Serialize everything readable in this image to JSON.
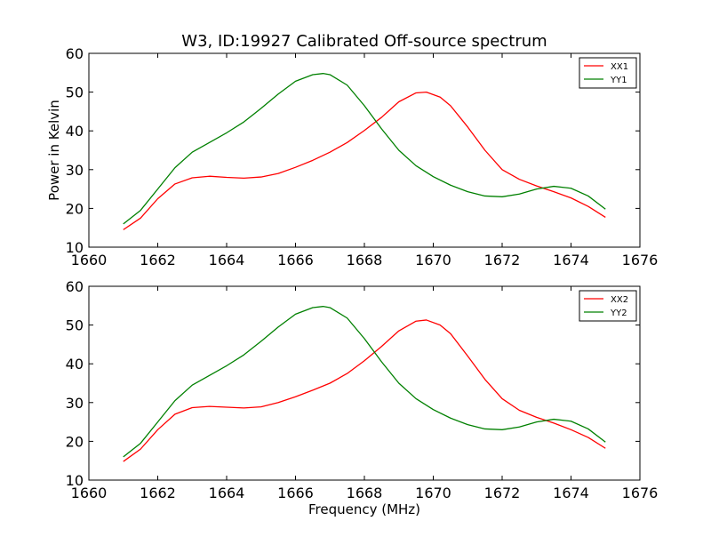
{
  "figure": {
    "title": "W3, ID:19927 Calibrated Off-source spectrum"
  },
  "chart_data": [
    {
      "type": "line",
      "title": "W3, ID:19927 Calibrated Off-source spectrum",
      "xlabel": "",
      "ylabel": "Power in Kelvin",
      "xlim": [
        1660,
        1676
      ],
      "ylim": [
        10,
        60
      ],
      "xticks": [
        1660,
        1662,
        1664,
        1666,
        1668,
        1670,
        1672,
        1674,
        1676
      ],
      "yticks": [
        10,
        20,
        30,
        40,
        50,
        60
      ],
      "legend": "top-right",
      "grid": false,
      "series": [
        {
          "name": "XX1",
          "color": "#ff0000",
          "x": [
            1661.0,
            1661.5,
            1662.0,
            1662.5,
            1663.0,
            1663.5,
            1664.0,
            1664.5,
            1665.0,
            1665.5,
            1666.0,
            1666.5,
            1667.0,
            1667.5,
            1668.0,
            1668.5,
            1669.0,
            1669.5,
            1669.8,
            1670.2,
            1670.5,
            1671.0,
            1671.5,
            1672.0,
            1672.5,
            1673.0,
            1673.5,
            1674.0,
            1674.5,
            1675.0
          ],
          "values": [
            14.5,
            17.5,
            22.5,
            26.3,
            27.9,
            28.3,
            28.0,
            27.8,
            28.1,
            29.0,
            30.6,
            32.4,
            34.5,
            37.0,
            40.1,
            43.5,
            47.5,
            49.8,
            50.0,
            48.7,
            46.5,
            41.0,
            35.0,
            30.0,
            27.5,
            25.8,
            24.3,
            22.7,
            20.5,
            17.7
          ]
        },
        {
          "name": "YY1",
          "color": "#008000",
          "x": [
            1661.0,
            1661.5,
            1662.0,
            1662.5,
            1663.0,
            1663.5,
            1664.0,
            1664.5,
            1665.0,
            1665.5,
            1666.0,
            1666.5,
            1666.8,
            1667.0,
            1667.5,
            1668.0,
            1668.5,
            1669.0,
            1669.5,
            1670.0,
            1670.5,
            1671.0,
            1671.5,
            1672.0,
            1672.5,
            1673.0,
            1673.5,
            1674.0,
            1674.5,
            1675.0
          ],
          "values": [
            16.0,
            19.5,
            25.0,
            30.5,
            34.5,
            37.0,
            39.5,
            42.3,
            45.8,
            49.5,
            52.8,
            54.5,
            54.8,
            54.5,
            51.8,
            46.5,
            40.5,
            35.0,
            31.0,
            28.2,
            26.0,
            24.3,
            23.2,
            23.0,
            23.7,
            25.0,
            25.7,
            25.2,
            23.2,
            19.8
          ]
        }
      ]
    },
    {
      "type": "line",
      "title": "",
      "xlabel": "Frequency (MHz)",
      "ylabel": "",
      "xlim": [
        1660,
        1676
      ],
      "ylim": [
        10,
        60
      ],
      "xticks": [
        1660,
        1662,
        1664,
        1666,
        1668,
        1670,
        1672,
        1674,
        1676
      ],
      "yticks": [
        10,
        20,
        30,
        40,
        50,
        60
      ],
      "legend": "top-right",
      "grid": false,
      "series": [
        {
          "name": "XX2",
          "color": "#ff0000",
          "x": [
            1661.0,
            1661.5,
            1662.0,
            1662.5,
            1663.0,
            1663.5,
            1664.0,
            1664.5,
            1665.0,
            1665.5,
            1666.0,
            1666.5,
            1667.0,
            1667.5,
            1668.0,
            1668.5,
            1669.0,
            1669.5,
            1669.8,
            1670.2,
            1670.5,
            1671.0,
            1671.5,
            1672.0,
            1672.5,
            1673.0,
            1673.5,
            1674.0,
            1674.5,
            1675.0
          ],
          "values": [
            14.8,
            18.0,
            23.0,
            27.0,
            28.7,
            29.0,
            28.8,
            28.6,
            28.9,
            30.0,
            31.5,
            33.2,
            35.0,
            37.5,
            40.8,
            44.5,
            48.5,
            51.0,
            51.3,
            50.0,
            47.8,
            42.0,
            36.0,
            31.0,
            28.0,
            26.2,
            24.7,
            23.0,
            21.0,
            18.2
          ]
        },
        {
          "name": "YY2",
          "color": "#008000",
          "x": [
            1661.0,
            1661.5,
            1662.0,
            1662.5,
            1663.0,
            1663.5,
            1664.0,
            1664.5,
            1665.0,
            1665.5,
            1666.0,
            1666.5,
            1666.8,
            1667.0,
            1667.5,
            1668.0,
            1668.5,
            1669.0,
            1669.5,
            1670.0,
            1670.5,
            1671.0,
            1671.5,
            1672.0,
            1672.5,
            1673.0,
            1673.5,
            1674.0,
            1674.5,
            1675.0
          ],
          "values": [
            16.0,
            19.5,
            25.0,
            30.5,
            34.5,
            37.0,
            39.5,
            42.3,
            45.8,
            49.5,
            52.8,
            54.5,
            54.8,
            54.5,
            51.8,
            46.5,
            40.5,
            35.0,
            31.0,
            28.2,
            26.0,
            24.3,
            23.2,
            23.0,
            23.7,
            25.0,
            25.7,
            25.2,
            23.2,
            19.8
          ]
        }
      ]
    }
  ]
}
